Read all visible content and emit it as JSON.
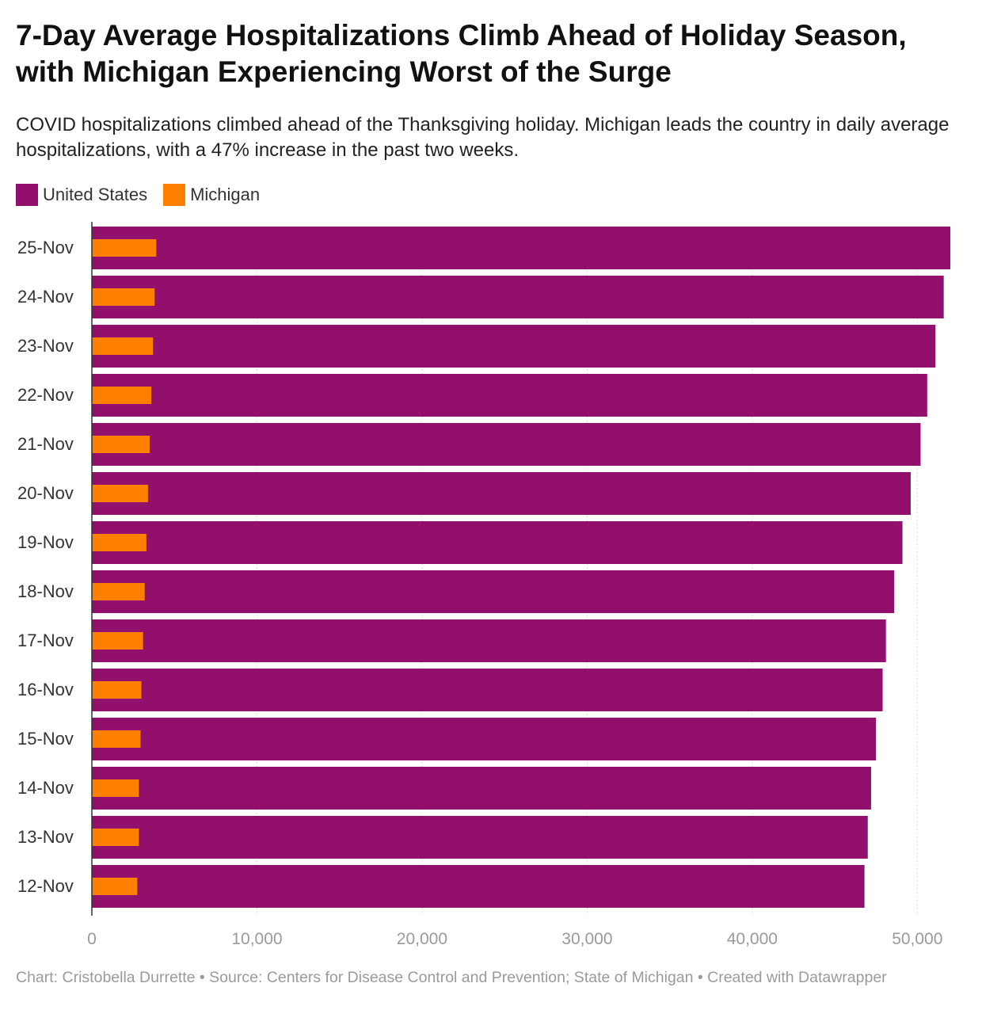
{
  "title": "7-Day Average Hospitalizations Climb Ahead of Holiday Season, with Michigan Experiencing Worst of the Surge",
  "subtitle": "COVID hospitalizations climbed ahead of the Thanksgiving holiday. Michigan leads the country in daily average hospitalizations, with a 47% increase in the past two weeks.",
  "footer": "Chart: Cristobella Durrette • Source: Centers for Disease Control and Prevention; State of Michigan • Created with Datawrapper",
  "colors": {
    "us": "#920f6b",
    "michigan": "#ff8000",
    "grid": "#dddddd",
    "axis": "#333333"
  },
  "chart_data": {
    "type": "bar",
    "orientation": "horizontal",
    "title": "7-Day Average Hospitalizations Climb Ahead of Holiday Season, with Michigan Experiencing Worst of the Surge",
    "xlabel": "",
    "ylabel": "",
    "xlim": [
      0,
      52000
    ],
    "grid": true,
    "legend": "top-left",
    "ticks": [
      {
        "value": 0,
        "label": "0"
      },
      {
        "value": 10000,
        "label": "10,000"
      },
      {
        "value": 20000,
        "label": "20,000"
      },
      {
        "value": 30000,
        "label": "30,000"
      },
      {
        "value": 40000,
        "label": "40,000"
      },
      {
        "value": 50000,
        "label": "50,000"
      }
    ],
    "categories": [
      "25-Nov",
      "24-Nov",
      "23-Nov",
      "22-Nov",
      "21-Nov",
      "20-Nov",
      "19-Nov",
      "18-Nov",
      "17-Nov",
      "16-Nov",
      "15-Nov",
      "14-Nov",
      "13-Nov",
      "12-Nov"
    ],
    "series": [
      {
        "name": "United States",
        "color": "#920f6b",
        "values": [
          52000,
          51600,
          51100,
          50600,
          50200,
          49600,
          49100,
          48600,
          48100,
          47900,
          47500,
          47200,
          47000,
          46800
        ]
      },
      {
        "name": "Michigan",
        "color": "#ff8000",
        "values": [
          3900,
          3800,
          3700,
          3600,
          3500,
          3400,
          3300,
          3200,
          3100,
          3000,
          2950,
          2850,
          2850,
          2750
        ]
      }
    ]
  }
}
